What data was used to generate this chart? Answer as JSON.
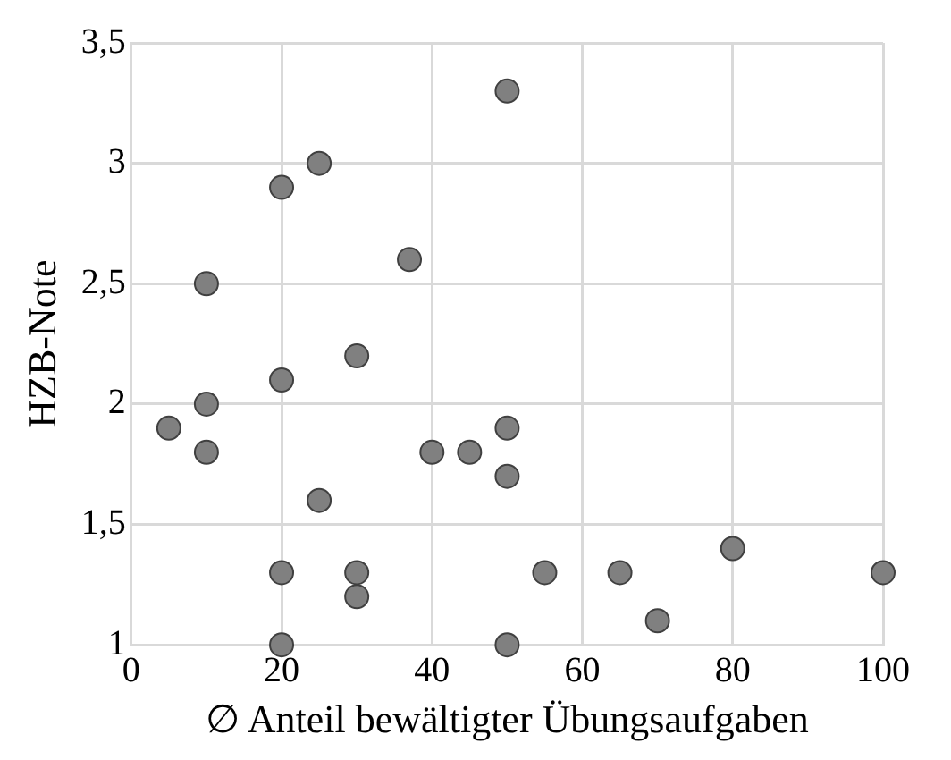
{
  "chart_data": {
    "type": "scatter",
    "xlabel": "∅ Anteil bewältigter Übungsaufgaben",
    "ylabel": "HZB-Note",
    "x": [
      50,
      25,
      20,
      37,
      10,
      30,
      20,
      10,
      5,
      10,
      40,
      45,
      50,
      50,
      25,
      20,
      30,
      30,
      55,
      65,
      80,
      100,
      70,
      20,
      50
    ],
    "series": [
      {
        "color": "#808080",
        "values": [
          3.3,
          3.0,
          2.9,
          2.6,
          2.5,
          2.2,
          2.1,
          2.0,
          1.9,
          1.8,
          1.8,
          1.8,
          1.9,
          1.7,
          1.6,
          1.3,
          1.3,
          1.2,
          1.3,
          1.3,
          1.4,
          1.3,
          1.1,
          1.0,
          1.0
        ]
      }
    ],
    "xlim": [
      0,
      100
    ],
    "xticks": [
      0,
      20,
      40,
      60,
      80,
      100
    ],
    "ylim": [
      1,
      3.5
    ],
    "yticks": [
      1,
      {
        "value": 1.5,
        "label": "1,5"
      },
      2,
      {
        "value": 2.5,
        "label": "2,5"
      },
      3,
      {
        "value": 3.5,
        "label": "3,5"
      }
    ],
    "grid": true,
    "marker": "circle",
    "legend": false
  }
}
